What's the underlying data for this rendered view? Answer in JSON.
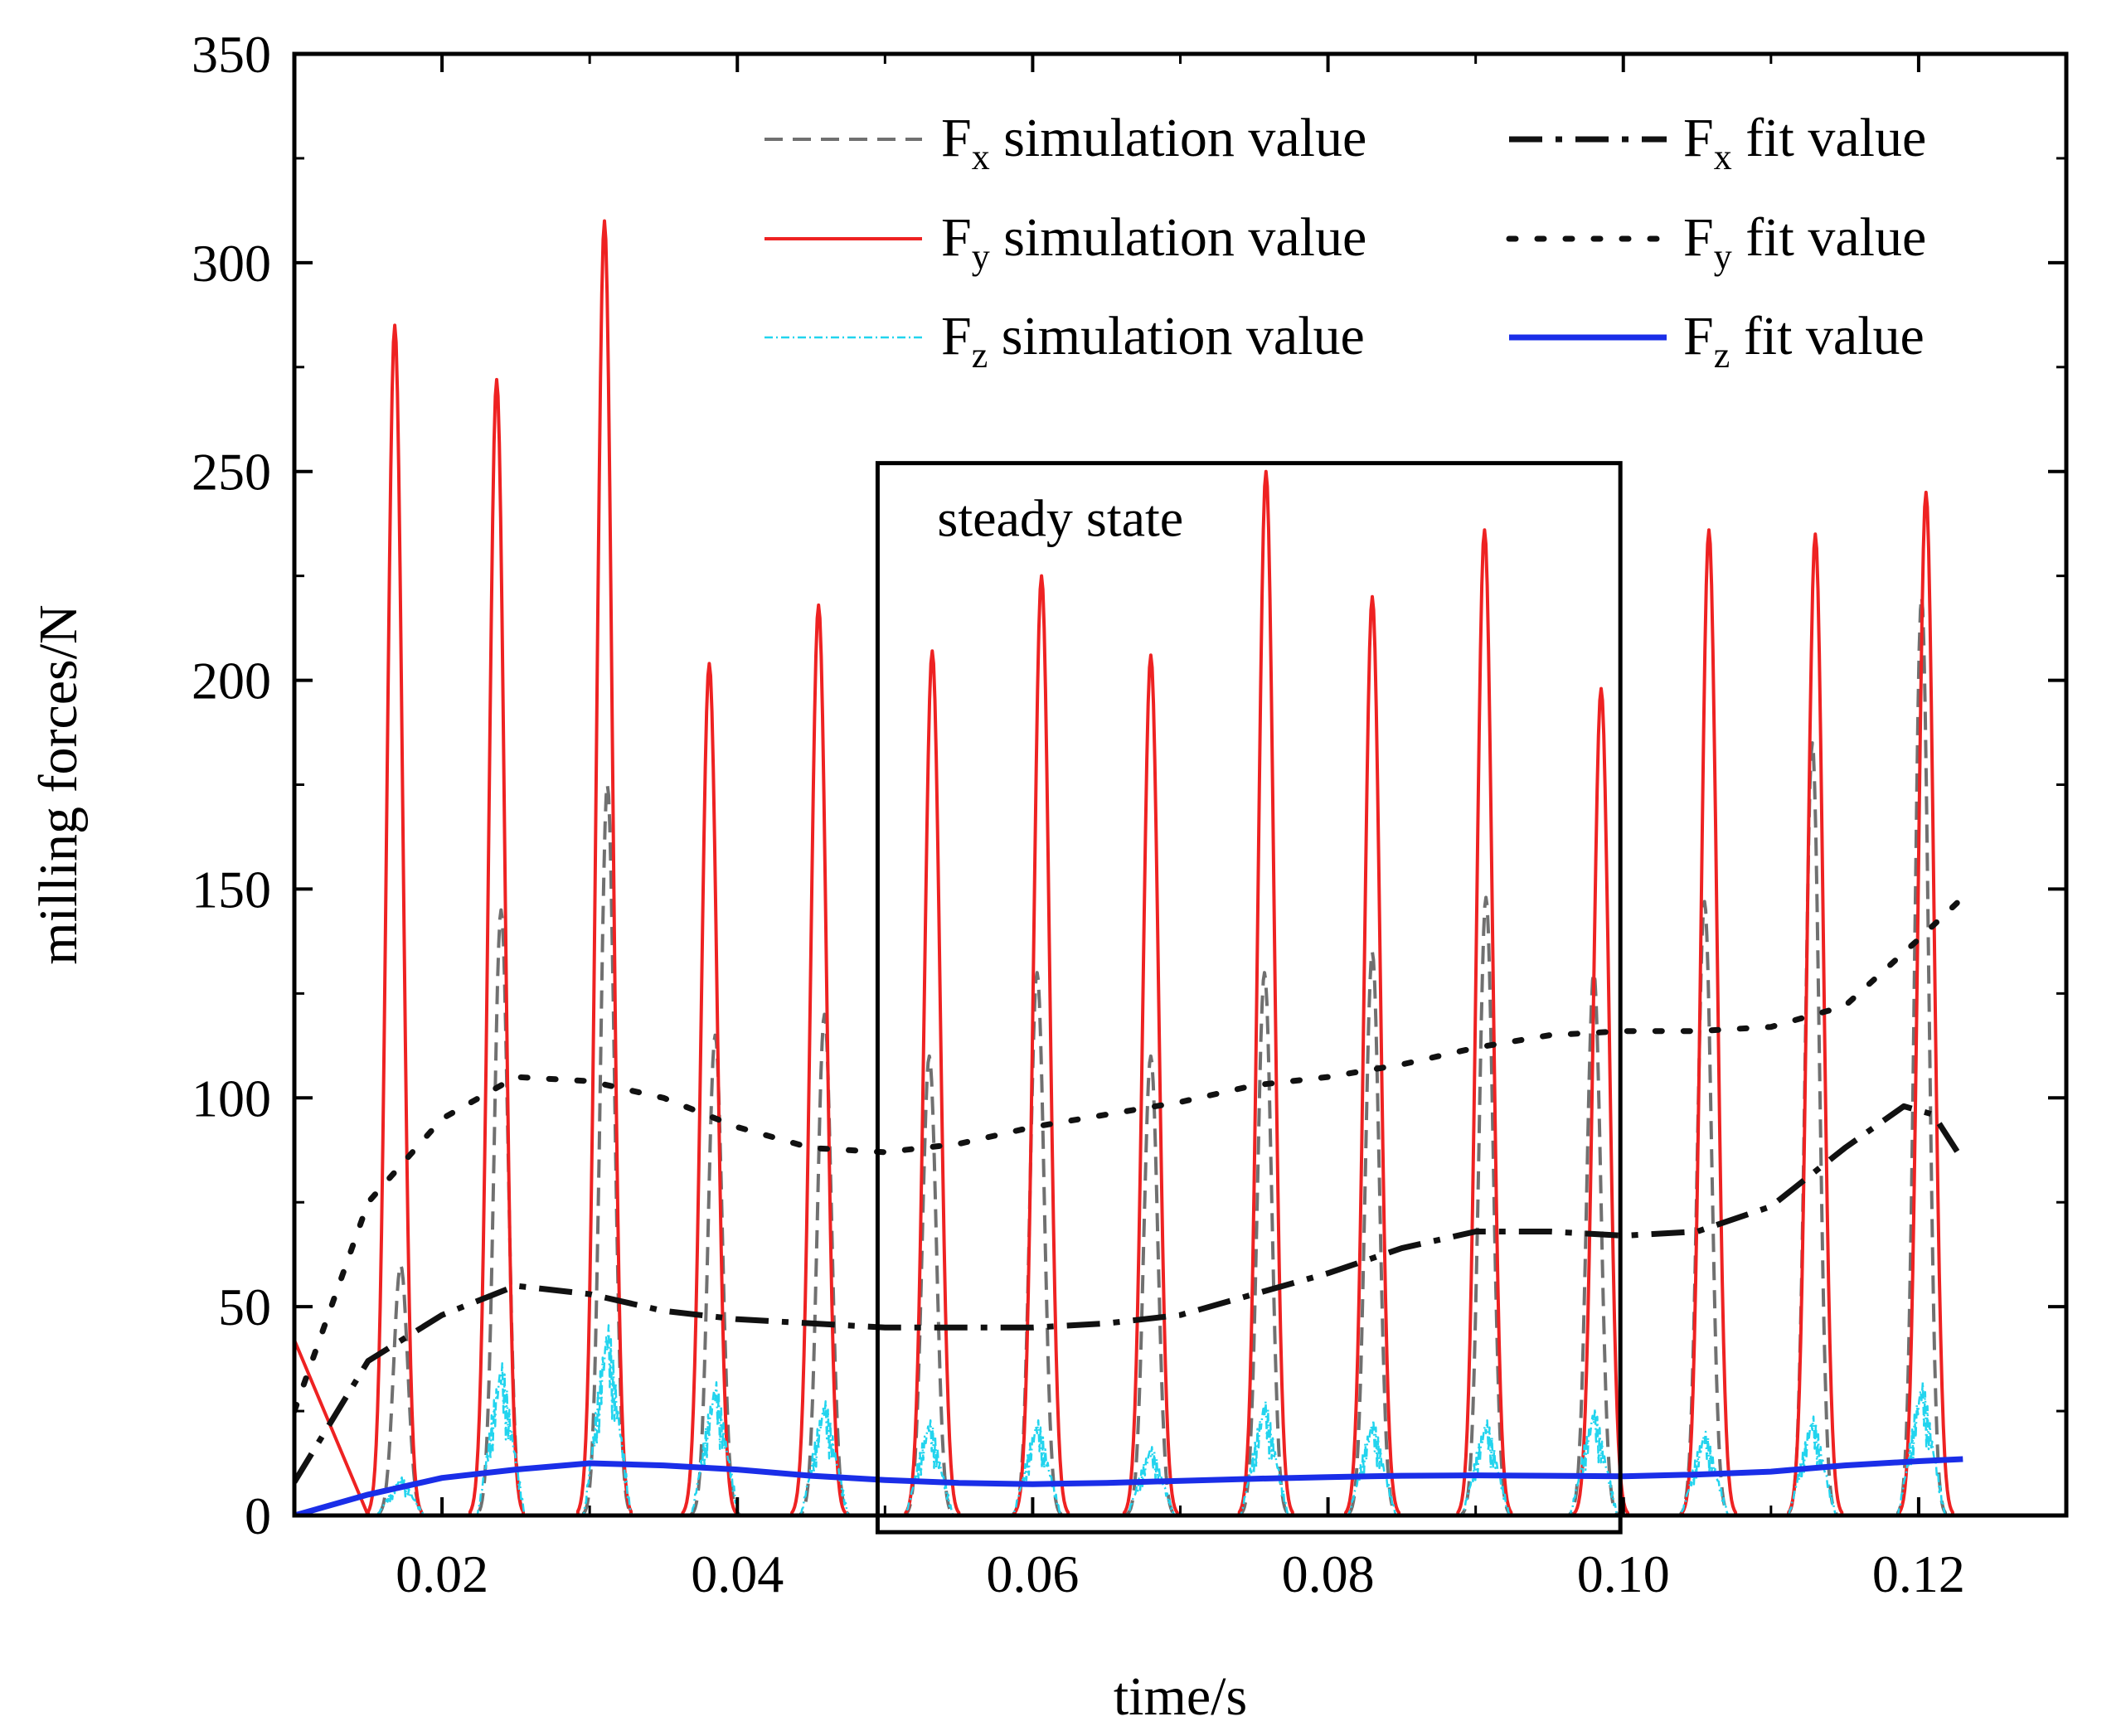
{
  "chart_data": {
    "type": "line",
    "xlabel": "time/s",
    "ylabel": "milling forces/N",
    "xlim": [
      0.01,
      0.13
    ],
    "ylim": [
      0,
      350
    ],
    "x_ticks": [
      0.02,
      0.04,
      0.06,
      0.08,
      0.1,
      0.12
    ],
    "x_tick_labels": [
      "0.02",
      "0.04",
      "0.06",
      "0.08",
      "0.10",
      "0.12"
    ],
    "y_ticks": [
      0,
      50,
      100,
      150,
      200,
      250,
      300,
      350
    ],
    "y_tick_labels": [
      "0",
      "50",
      "100",
      "150",
      "200",
      "250",
      "300",
      "350"
    ],
    "legend_position": "top-right",
    "annotation": {
      "text": "steady state",
      "x_range": [
        0.0495,
        0.0998
      ],
      "y_range": [
        -4,
        252
      ]
    },
    "series": [
      {
        "name": "Fx simulation value",
        "label_main": "F",
        "label_sub": "x",
        "label_rest": " simulation value",
        "color": "#707070",
        "style": "dashed",
        "width": 4,
        "peaks": [
          [
            0.0172,
            60
          ],
          [
            0.024,
            145
          ],
          [
            0.0312,
            175
          ],
          [
            0.0385,
            115
          ],
          [
            0.0459,
            120
          ],
          [
            0.053,
            110
          ],
          [
            0.0603,
            130
          ],
          [
            0.068,
            110
          ],
          [
            0.0757,
            130
          ],
          [
            0.083,
            135
          ],
          [
            0.0907,
            148
          ],
          [
            0.098,
            130
          ],
          [
            0.1055,
            147
          ],
          [
            0.1128,
            185
          ],
          [
            0.1202,
            220
          ]
        ]
      },
      {
        "name": "Fy simulation value",
        "label_main": "F",
        "label_sub": "y",
        "label_rest": " simulation value",
        "color": "#ee2222",
        "style": "solid",
        "width": 4,
        "peaks": [
          [
            0.0168,
            285
          ],
          [
            0.0237,
            272
          ],
          [
            0.031,
            310
          ],
          [
            0.0381,
            204
          ],
          [
            0.0455,
            218
          ],
          [
            0.0532,
            207
          ],
          [
            0.0606,
            225
          ],
          [
            0.068,
            206
          ],
          [
            0.0758,
            250
          ],
          [
            0.083,
            220
          ],
          [
            0.0906,
            236
          ],
          [
            0.0985,
            198
          ],
          [
            0.1058,
            236
          ],
          [
            0.113,
            235
          ],
          [
            0.1205,
            245
          ]
        ]
      },
      {
        "name": "Fz simulation value",
        "label_main": "F",
        "label_sub": "z",
        "label_rest": " simulation value",
        "color": "#22d4ee",
        "style": "dash-dot-thin",
        "width": 2.5,
        "peaks": [
          [
            0.0172,
            10
          ],
          [
            0.024,
            40
          ],
          [
            0.0312,
            50
          ],
          [
            0.0385,
            35
          ],
          [
            0.0459,
            30
          ],
          [
            0.053,
            25
          ],
          [
            0.0603,
            25
          ],
          [
            0.068,
            18
          ],
          [
            0.0757,
            30
          ],
          [
            0.083,
            25
          ],
          [
            0.0907,
            25
          ],
          [
            0.098,
            28
          ],
          [
            0.1055,
            22
          ],
          [
            0.1128,
            26
          ],
          [
            0.1202,
            35
          ]
        ]
      },
      {
        "name": "Fx fit value",
        "label_main": "F",
        "label_sub": "x",
        "label_rest": " fit value",
        "color": "#111111",
        "style": "dash-dot",
        "width": 7,
        "points": [
          [
            0.01,
            8
          ],
          [
            0.015,
            37
          ],
          [
            0.02,
            48
          ],
          [
            0.025,
            55
          ],
          [
            0.03,
            53
          ],
          [
            0.035,
            49
          ],
          [
            0.04,
            47
          ],
          [
            0.045,
            46
          ],
          [
            0.05,
            45
          ],
          [
            0.055,
            45
          ],
          [
            0.06,
            45
          ],
          [
            0.065,
            46
          ],
          [
            0.07,
            48
          ],
          [
            0.075,
            53
          ],
          [
            0.08,
            58
          ],
          [
            0.085,
            64
          ],
          [
            0.09,
            68
          ],
          [
            0.095,
            68
          ],
          [
            0.1,
            67
          ],
          [
            0.105,
            68
          ],
          [
            0.11,
            74
          ],
          [
            0.115,
            88
          ],
          [
            0.119,
            98
          ],
          [
            0.121,
            96
          ],
          [
            0.123,
            85
          ]
        ]
      },
      {
        "name": "Fy fit value",
        "label_main": "F",
        "label_sub": "y",
        "label_rest": " fit value",
        "color": "#111111",
        "style": "dotted",
        "width": 7,
        "points": [
          [
            0.01,
            25
          ],
          [
            0.015,
            75
          ],
          [
            0.02,
            95
          ],
          [
            0.025,
            105
          ],
          [
            0.03,
            104
          ],
          [
            0.035,
            100
          ],
          [
            0.04,
            93
          ],
          [
            0.045,
            88
          ],
          [
            0.05,
            87
          ],
          [
            0.055,
            89
          ],
          [
            0.06,
            93
          ],
          [
            0.065,
            96
          ],
          [
            0.07,
            99
          ],
          [
            0.075,
            103
          ],
          [
            0.08,
            105
          ],
          [
            0.085,
            108
          ],
          [
            0.09,
            112
          ],
          [
            0.095,
            115
          ],
          [
            0.1,
            116
          ],
          [
            0.105,
            116
          ],
          [
            0.11,
            117
          ],
          [
            0.115,
            122
          ],
          [
            0.12,
            138
          ],
          [
            0.123,
            148
          ]
        ]
      },
      {
        "name": "Fz fit value",
        "label_main": "F",
        "label_sub": "z",
        "label_rest": " fit value",
        "color": "#1a2ee8",
        "style": "solid",
        "width": 7,
        "points": [
          [
            0.01,
            0
          ],
          [
            0.015,
            5
          ],
          [
            0.02,
            9
          ],
          [
            0.025,
            11
          ],
          [
            0.03,
            12.5
          ],
          [
            0.035,
            12
          ],
          [
            0.04,
            11
          ],
          [
            0.045,
            9.5
          ],
          [
            0.05,
            8.5
          ],
          [
            0.055,
            7.8
          ],
          [
            0.06,
            7.5
          ],
          [
            0.065,
            7.8
          ],
          [
            0.07,
            8.3
          ],
          [
            0.075,
            8.8
          ],
          [
            0.08,
            9.2
          ],
          [
            0.085,
            9.5
          ],
          [
            0.09,
            9.6
          ],
          [
            0.095,
            9.5
          ],
          [
            0.1,
            9.4
          ],
          [
            0.105,
            9.8
          ],
          [
            0.11,
            10.5
          ],
          [
            0.115,
            12
          ],
          [
            0.12,
            13
          ],
          [
            0.123,
            13.5
          ]
        ]
      }
    ]
  }
}
